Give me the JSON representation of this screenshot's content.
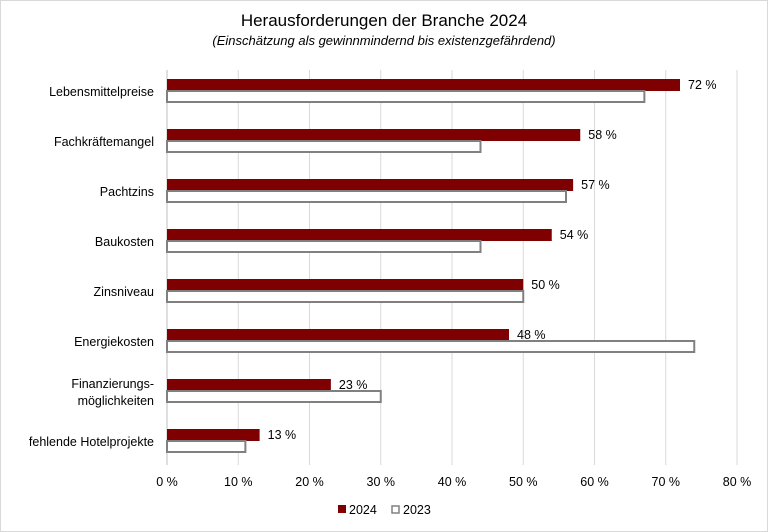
{
  "chart_data": {
    "type": "bar",
    "orientation": "horizontal",
    "title": "Herausforderungen der Branche 2024",
    "subtitle": "(Einschätzung als gewinnmindernd bis existenzgefährdend)",
    "categories": [
      [
        "Lebensmittelpreise"
      ],
      [
        "Fachkräftemangel"
      ],
      [
        "Pachtzins"
      ],
      [
        "Baukosten"
      ],
      [
        "Zinsniveau"
      ],
      [
        "Energiekosten"
      ],
      [
        "Finanzierungs-",
        "möglichkeiten"
      ],
      [
        "fehlende Hotelprojekte"
      ]
    ],
    "series": [
      {
        "name": "2024",
        "values": [
          72,
          58,
          57,
          54,
          50,
          48,
          23,
          13
        ],
        "labels": [
          "72 %",
          "58 %",
          "57 %",
          "54 %",
          "50 %",
          "48 %",
          "23 %",
          "13 %"
        ],
        "color": "#7f0000",
        "style": "filled"
      },
      {
        "name": "2023",
        "values": [
          67,
          44,
          56,
          44,
          50,
          74,
          30,
          11
        ],
        "color": "#808080",
        "style": "outline"
      }
    ],
    "xlim": [
      0,
      80
    ],
    "xticks": [
      "0 %",
      "10 %",
      "20 %",
      "30 %",
      "40 %",
      "50 %",
      "60 %",
      "70 %",
      "80 %"
    ],
    "grid": "vertical",
    "legend": "bottom"
  }
}
